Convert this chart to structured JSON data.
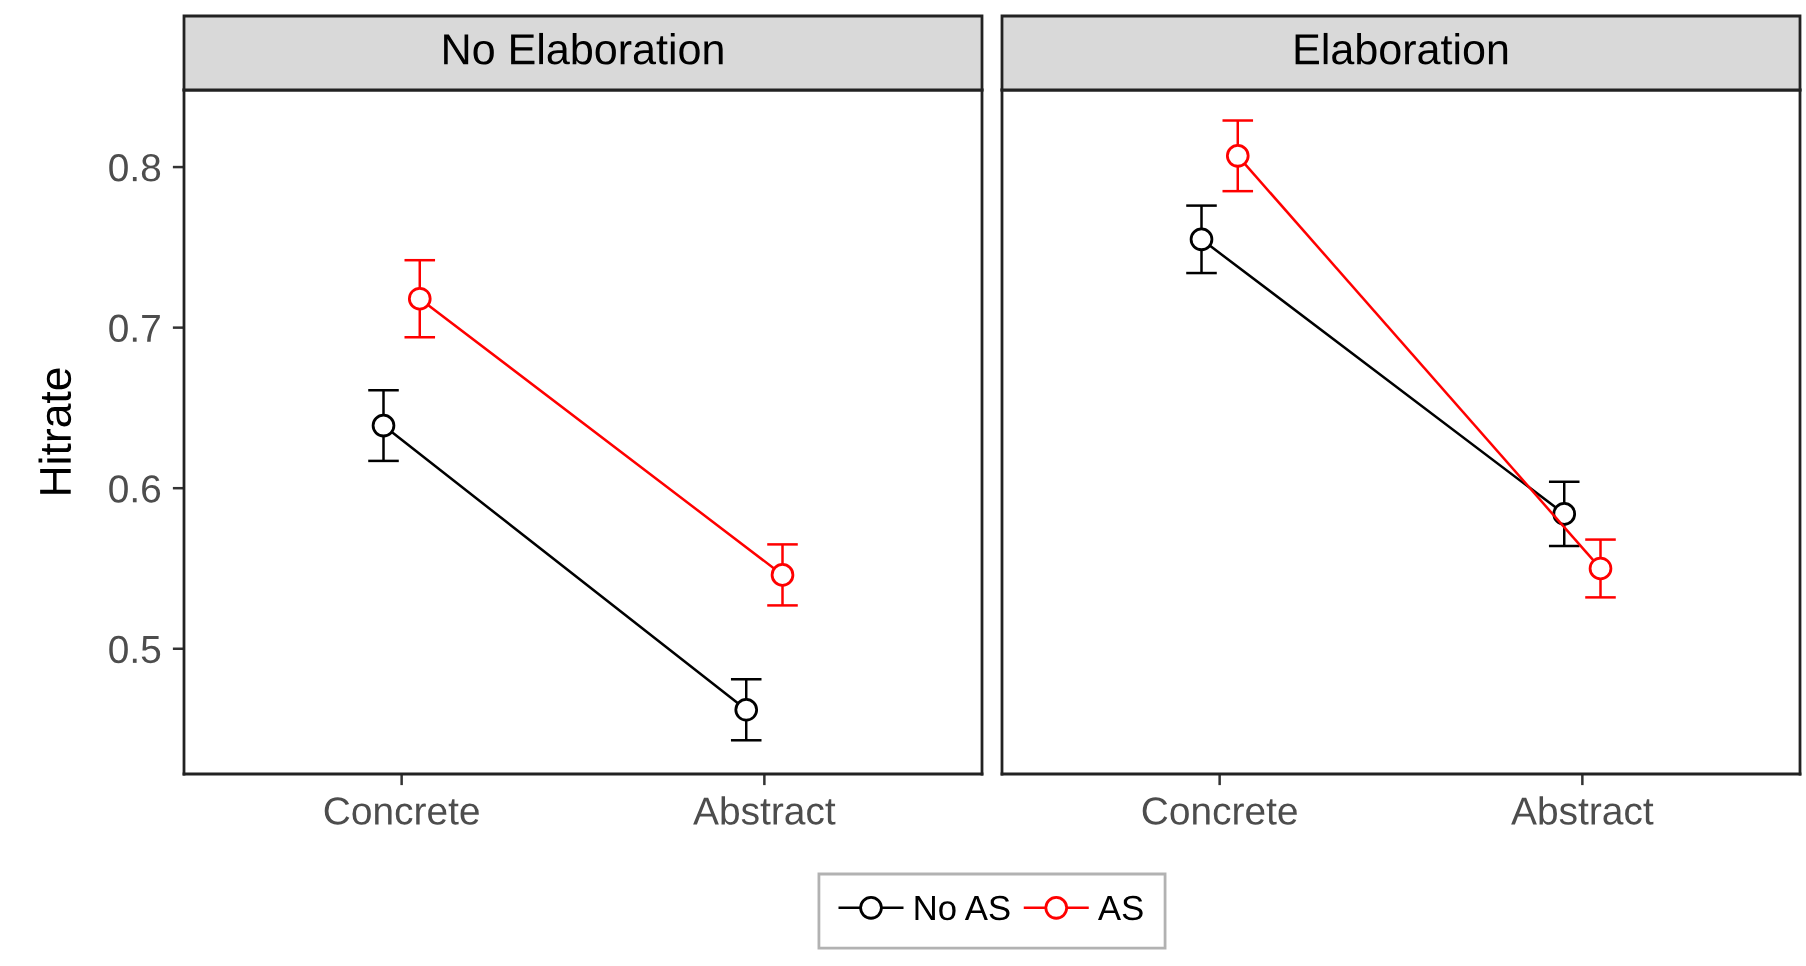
{
  "chart_data": [
    {
      "type": "line",
      "title": "No Elaboration",
      "ylabel": "Hitrate",
      "categories": [
        "Concrete",
        "Abstract"
      ],
      "series": [
        {
          "name": "No AS",
          "color": "#000000",
          "values": [
            0.639,
            0.462
          ],
          "errors": [
            0.022,
            0.019
          ]
        },
        {
          "name": "AS",
          "color": "#ff0000",
          "values": [
            0.718,
            0.546
          ],
          "errors": [
            0.024,
            0.019
          ]
        }
      ],
      "ylim": [
        0.422,
        0.848
      ],
      "yticks": [
        0.5,
        0.6,
        0.7,
        0.8
      ],
      "marker": "circle",
      "line_style": "solid",
      "legend": "bottom"
    },
    {
      "type": "line",
      "title": "Elaboration",
      "categories": [
        "Concrete",
        "Abstract"
      ],
      "series": [
        {
          "name": "No AS",
          "color": "#000000",
          "values": [
            0.755,
            0.584
          ],
          "errors": [
            0.021,
            0.02
          ]
        },
        {
          "name": "AS",
          "color": "#ff0000",
          "values": [
            0.807,
            0.55
          ],
          "errors": [
            0.022,
            0.018
          ]
        }
      ],
      "ylim": [
        0.422,
        0.848
      ],
      "yticks": [
        0.5,
        0.6,
        0.7,
        0.8
      ],
      "tick_labels": "x",
      "marker": "circle",
      "line_style": "solid"
    }
  ]
}
